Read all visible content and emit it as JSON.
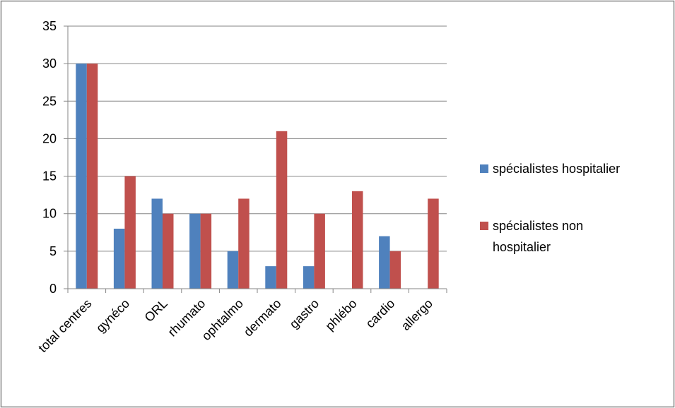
{
  "chart_data": {
    "type": "bar",
    "title": "",
    "xlabel": "",
    "ylabel": "",
    "categories": [
      "total centres",
      "gynéco",
      "ORL",
      "rhumato",
      "ophtalmo",
      "dermato",
      "gastro",
      "phlébo",
      "cardio",
      "allergo"
    ],
    "series": [
      {
        "name": "spécialistes hospitalier",
        "values": [
          30,
          8,
          12,
          10,
          5,
          3,
          3,
          0,
          7,
          0
        ]
      },
      {
        "name": "spécialistes non hospitalier",
        "values": [
          30,
          15,
          10,
          10,
          12,
          21,
          10,
          13,
          5,
          12
        ]
      }
    ],
    "ylim": [
      0,
      35
    ],
    "yticks": [
      0,
      5,
      10,
      15,
      20,
      25,
      30,
      35
    ],
    "grid": true,
    "legend_position": "right",
    "legend_labels": {
      "series1": "spécialistes hospitalier",
      "series2_line1": "spécialistes non",
      "series2_line2": "hospitalier"
    },
    "colors": {
      "series1": "#4F81BD",
      "series2": "#C0504D",
      "gridline": "#868686",
      "frame": "#868686"
    }
  }
}
